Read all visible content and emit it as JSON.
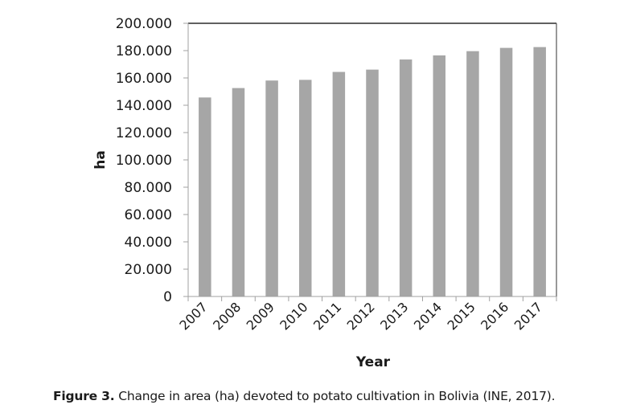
{
  "chart_data": {
    "type": "bar",
    "title": "",
    "xlabel": "Year",
    "ylabel": "ha",
    "categories": [
      "2007",
      "2008",
      "2009",
      "2010",
      "2011",
      "2012",
      "2013",
      "2014",
      "2015",
      "2016",
      "2017"
    ],
    "values": [
      145700,
      152600,
      158100,
      158600,
      164400,
      166100,
      173500,
      176500,
      179600,
      182000,
      182600
    ],
    "ylim": [
      0,
      200000
    ],
    "yticks": [
      0,
      20000,
      40000,
      60000,
      80000,
      100000,
      120000,
      140000,
      160000,
      180000,
      200000
    ],
    "ytick_labels": [
      "0",
      "20.000",
      "40.000",
      "60.000",
      "80.000",
      "100.000",
      "120.000",
      "140.000",
      "160.000",
      "180.000",
      "200.000"
    ],
    "grid": false,
    "legend": "none",
    "bar_color": "#a6a6a6"
  },
  "caption": {
    "label": "Figure 3.",
    "text": " Change in area (ha) devoted to potato cultivation in Bolivia (INE, 2017)."
  }
}
